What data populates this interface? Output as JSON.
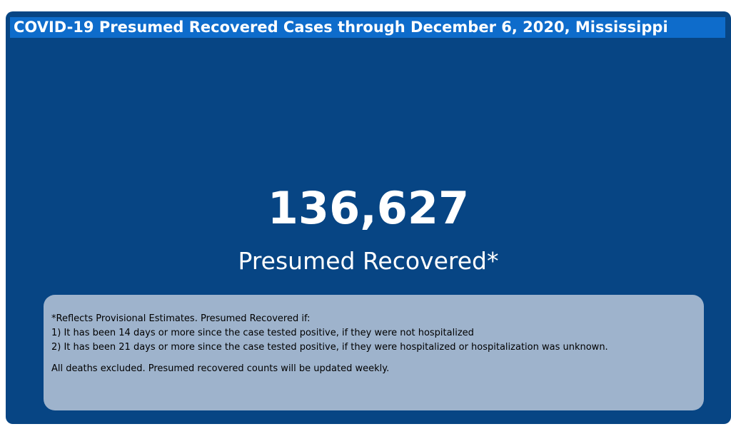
{
  "header": {
    "title": "COVID-19 Presumed Recovered Cases through December 6, 2020, Mississippi"
  },
  "kpi": {
    "value": "136,627",
    "label": "Presumed Recovered*"
  },
  "notes": {
    "lines": [
      "*Reflects Provisional Estimates. Presumed Recovered if:",
      "1) It has been 14 days or more since the case tested positive, if they were not hospitalized",
      "2) It has been 21 days or more since the case tested positive, if they were hospitalized or hospitalization was unknown."
    ],
    "footer": "All deaths excluded. Presumed recovered counts will be updated weekly."
  },
  "colors": {
    "card_background": "#074584",
    "title_bar": "#0e6ccb",
    "note_box": "#9eb3cc",
    "text_light": "#ffffff",
    "text_dark": "#000000"
  }
}
